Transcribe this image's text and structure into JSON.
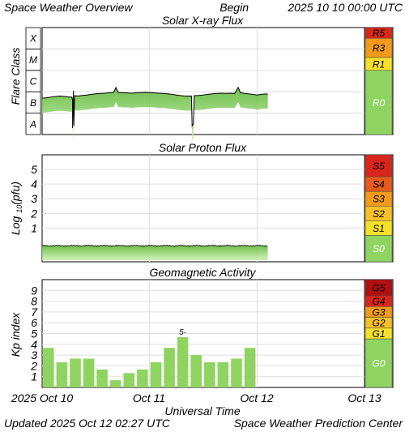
{
  "header": {
    "title": "Space Weather Overview",
    "begin_label": "Begin",
    "begin_value": "2025 10 10 00:00 UTC"
  },
  "footer": {
    "updated_label": "Updated",
    "updated_value": "2025 Oct 12 02:27 UTC",
    "source": "Space Weather Prediction Center"
  },
  "colors": {
    "xray_line": "#000000",
    "xray_fill": "#78c850",
    "kp_bar": "#8fd460",
    "scale_green": "#8fd460",
    "scale_yellow": "#f6e02a",
    "scale_orange": "#f29a1a",
    "scale_red_orange": "#e95b1c",
    "scale_red": "#d9261c",
    "scale_dark_red": "#b01010"
  },
  "chart_data": [
    {
      "type": "line",
      "title": "Solar X-ray Flux",
      "ylabel": "Flare Class",
      "y_classes": [
        "A",
        "B",
        "C",
        "M",
        "X"
      ],
      "ylim": [
        0,
        5
      ],
      "x_ticks": [
        "2025 Oct 10",
        "Oct 11",
        "Oct 12",
        "Oct 13"
      ],
      "xlim_hours": [
        0,
        72
      ],
      "data_end_hour": 50.4,
      "series": [
        {
          "points": [
            [
              0,
              1.7
            ],
            [
              1,
              1.72
            ],
            [
              2,
              1.75
            ],
            [
              3,
              1.78
            ],
            [
              4,
              1.8
            ],
            [
              5,
              1.78
            ],
            [
              6,
              1.75
            ],
            [
              6.8,
              1.6
            ],
            [
              7,
              2.05
            ],
            [
              7.3,
              1.82
            ],
            [
              8,
              1.8
            ],
            [
              9,
              1.83
            ],
            [
              10,
              1.85
            ],
            [
              11,
              1.88
            ],
            [
              12,
              1.9
            ],
            [
              13,
              1.92
            ],
            [
              14,
              1.93
            ],
            [
              15,
              1.95
            ],
            [
              16,
              1.97
            ],
            [
              16.5,
              2.2
            ],
            [
              17,
              1.97
            ],
            [
              18,
              1.95
            ],
            [
              19,
              1.95
            ],
            [
              20,
              1.93
            ],
            [
              21,
              1.95
            ],
            [
              22,
              1.96
            ],
            [
              23,
              1.97
            ],
            [
              24,
              1.96
            ],
            [
              25,
              1.95
            ],
            [
              26,
              1.93
            ],
            [
              27,
              1.92
            ],
            [
              28,
              1.9
            ],
            [
              29,
              1.88
            ],
            [
              30,
              1.85
            ],
            [
              31,
              1.82
            ],
            [
              32,
              1.8
            ],
            [
              33,
              1.8
            ],
            [
              34,
              1.82
            ],
            [
              35,
              1.83
            ],
            [
              36,
              1.85
            ],
            [
              37,
              1.88
            ],
            [
              38,
              1.9
            ],
            [
              39,
              1.92
            ],
            [
              40,
              1.93
            ],
            [
              41,
              1.92
            ],
            [
              42,
              1.93
            ],
            [
              43,
              1.92
            ],
            [
              43.8,
              2.2
            ],
            [
              44.3,
              1.95
            ],
            [
              45,
              1.93
            ],
            [
              46,
              1.9
            ],
            [
              47,
              1.88
            ],
            [
              48,
              1.85
            ],
            [
              49,
              1.88
            ],
            [
              50,
              1.9
            ],
            [
              50.4,
              1.88
            ]
          ],
          "dips": [
            [
              6.8,
              0.3
            ],
            [
              33.5,
              0.4
            ]
          ]
        }
      ],
      "scale": [
        {
          "label": "R5",
          "color": "#d9261c"
        },
        {
          "label": "R3",
          "color": "#f29a1a"
        },
        {
          "label": "R1",
          "color": "#f6e02a"
        },
        {
          "label": "R0",
          "color": "#8fd460"
        }
      ]
    },
    {
      "type": "line",
      "title": "Solar Proton Flux",
      "ylabel": "Log10(pfu)",
      "ylim": [
        -1.3,
        6
      ],
      "y_ticks": [
        1,
        2,
        3,
        4,
        5
      ],
      "xlim_hours": [
        0,
        72
      ],
      "data_end_hour": 50.4,
      "series": [
        {
          "baseline": -0.2
        }
      ],
      "scale": [
        {
          "label": "S5",
          "color": "#d9261c"
        },
        {
          "label": "S4",
          "color": "#e95b1c"
        },
        {
          "label": "S3",
          "color": "#f29a1a"
        },
        {
          "label": "S2",
          "color": "#f6c028"
        },
        {
          "label": "S1",
          "color": "#f6e02a"
        },
        {
          "label": "S0",
          "color": "#8fd460"
        }
      ]
    },
    {
      "type": "bar",
      "title": "Geomagnetic Activity",
      "ylabel": "Kp index",
      "ylim": [
        0,
        10
      ],
      "y_ticks": [
        1,
        2,
        3,
        4,
        5,
        6,
        7,
        8,
        9
      ],
      "xlim_hours": [
        0,
        72
      ],
      "bar_hours": 3,
      "values": [
        3.67,
        2.33,
        2.67,
        2.67,
        1.67,
        0.67,
        1.33,
        1.67,
        2.33,
        3.67,
        4.67,
        3.0,
        2.33,
        2.33,
        2.67,
        3.67
      ],
      "bar_labels": [
        null,
        null,
        null,
        null,
        null,
        null,
        null,
        null,
        null,
        null,
        "5-",
        null,
        null,
        null,
        null,
        null
      ],
      "scale": [
        {
          "label": "G5",
          "color": "#b01010"
        },
        {
          "label": "G4",
          "color": "#d9261c"
        },
        {
          "label": "G3",
          "color": "#f29a1a"
        },
        {
          "label": "G2",
          "color": "#f6c028"
        },
        {
          "label": "G1",
          "color": "#f6e02a"
        },
        {
          "label": "G0",
          "color": "#8fd460"
        }
      ]
    }
  ],
  "xaxis_label": "Universal Time"
}
